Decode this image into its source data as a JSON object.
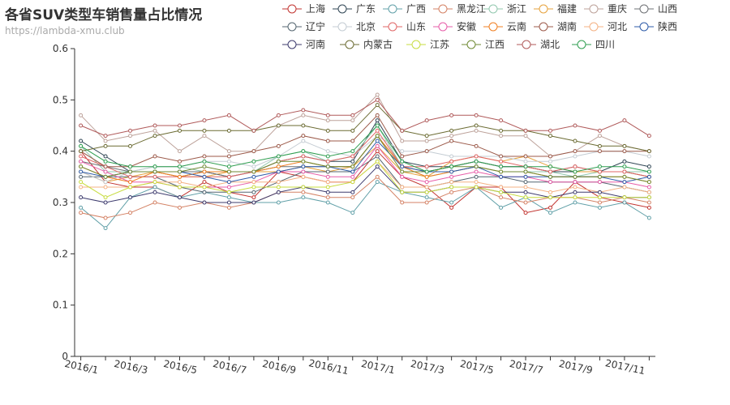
{
  "chart_data": {
    "type": "line",
    "title": "各省SUV类型车销售量占比情况",
    "subtitle": "https://lambda-xmu.club",
    "xlabel": "",
    "ylabel": "",
    "ylim": [
      0,
      0.6
    ],
    "yticks": [
      0,
      0.1,
      0.2,
      0.3,
      0.4,
      0.5,
      0.6
    ],
    "x": [
      "2016/1",
      "2016/2",
      "2016/3",
      "2016/4",
      "2016/5",
      "2016/6",
      "2016/7",
      "2016/8",
      "2016/9",
      "2016/10",
      "2016/11",
      "2016/12",
      "2017/1",
      "2017/2",
      "2017/3",
      "2017/4",
      "2017/5",
      "2017/6",
      "2017/7",
      "2017/8",
      "2017/9",
      "2017/10",
      "2017/11",
      "2017/12"
    ],
    "x_tick_labels": [
      "2016/1",
      "2016/3",
      "2016/5",
      "2016/7",
      "2016/9",
      "2016/11",
      "2017/1",
      "2017/3",
      "2017/5",
      "2017/7",
      "2017/9",
      "2017/11"
    ],
    "grid": false,
    "legend_position": "top-right",
    "series": [
      {
        "name": "上海",
        "color": "#c23531",
        "values": [
          0.4,
          0.34,
          0.33,
          0.33,
          0.31,
          0.34,
          0.32,
          0.31,
          0.36,
          0.35,
          0.34,
          0.34,
          0.4,
          0.35,
          0.33,
          0.29,
          0.33,
          0.33,
          0.28,
          0.29,
          0.34,
          0.31,
          0.3,
          0.29
        ]
      },
      {
        "name": "广东",
        "color": "#2f4554",
        "values": [
          0.42,
          0.39,
          0.36,
          0.36,
          0.35,
          0.36,
          0.35,
          0.36,
          0.38,
          0.39,
          0.38,
          0.38,
          0.46,
          0.38,
          0.37,
          0.37,
          0.38,
          0.37,
          0.37,
          0.36,
          0.36,
          0.36,
          0.38,
          0.37
        ]
      },
      {
        "name": "广西",
        "color": "#61a0a8",
        "values": [
          0.29,
          0.25,
          0.31,
          0.33,
          0.31,
          0.32,
          0.31,
          0.3,
          0.3,
          0.31,
          0.3,
          0.28,
          0.34,
          0.32,
          0.31,
          0.3,
          0.33,
          0.29,
          0.31,
          0.28,
          0.3,
          0.29,
          0.3,
          0.27
        ]
      },
      {
        "name": "黑龙江",
        "color": "#d48265",
        "values": [
          0.28,
          0.27,
          0.28,
          0.3,
          0.29,
          0.3,
          0.29,
          0.3,
          0.32,
          0.32,
          0.31,
          0.31,
          0.35,
          0.3,
          0.3,
          0.32,
          0.33,
          0.31,
          0.3,
          0.31,
          0.31,
          0.3,
          0.31,
          0.3
        ]
      },
      {
        "name": "浙江",
        "color": "#91c7ae",
        "values": [
          0.41,
          0.36,
          0.36,
          0.37,
          0.37,
          0.36,
          0.36,
          0.36,
          0.39,
          0.4,
          0.38,
          0.39,
          0.45,
          0.37,
          0.35,
          0.36,
          0.37,
          0.36,
          0.36,
          0.36,
          0.35,
          0.36,
          0.36,
          0.36
        ]
      },
      {
        "name": "福建",
        "color": "#e6a23c",
        "values": [
          0.36,
          0.34,
          0.35,
          0.36,
          0.35,
          0.35,
          0.36,
          0.36,
          0.36,
          0.37,
          0.36,
          0.37,
          0.41,
          0.36,
          0.35,
          0.38,
          0.39,
          0.38,
          0.39,
          0.37,
          0.36,
          0.36,
          0.36,
          0.35
        ]
      },
      {
        "name": "重庆",
        "color": "#bda29a",
        "values": [
          0.47,
          0.42,
          0.43,
          0.44,
          0.4,
          0.43,
          0.4,
          0.4,
          0.45,
          0.47,
          0.46,
          0.46,
          0.51,
          0.42,
          0.42,
          0.43,
          0.44,
          0.43,
          0.43,
          0.39,
          0.4,
          0.43,
          0.41,
          0.4
        ]
      },
      {
        "name": "山西",
        "color": "#6e7074",
        "values": [
          0.38,
          0.37,
          0.36,
          0.36,
          0.36,
          0.36,
          0.35,
          0.36,
          0.37,
          0.37,
          0.37,
          0.37,
          0.43,
          0.37,
          0.36,
          0.37,
          0.38,
          0.37,
          0.37,
          0.36,
          0.37,
          0.36,
          0.36,
          0.35
        ]
      },
      {
        "name": "辽宁",
        "color": "#546570",
        "values": [
          0.35,
          0.35,
          0.35,
          0.35,
          0.33,
          0.32,
          0.32,
          0.32,
          0.34,
          0.36,
          0.36,
          0.36,
          0.39,
          0.33,
          0.33,
          0.34,
          0.35,
          0.35,
          0.34,
          0.34,
          0.34,
          0.34,
          0.33,
          0.32
        ]
      },
      {
        "name": "北京",
        "color": "#c4ccd3",
        "values": [
          0.36,
          0.34,
          0.36,
          0.37,
          0.37,
          0.38,
          0.38,
          0.37,
          0.39,
          0.42,
          0.4,
          0.39,
          0.43,
          0.4,
          0.4,
          0.39,
          0.39,
          0.39,
          0.38,
          0.38,
          0.39,
          0.4,
          0.4,
          0.39
        ]
      },
      {
        "name": "山东",
        "color": "#e06666",
        "values": [
          0.39,
          0.37,
          0.35,
          0.35,
          0.35,
          0.35,
          0.35,
          0.36,
          0.38,
          0.39,
          0.38,
          0.39,
          0.44,
          0.37,
          0.37,
          0.38,
          0.39,
          0.38,
          0.37,
          0.36,
          0.37,
          0.36,
          0.36,
          0.35
        ]
      },
      {
        "name": "安徽",
        "color": "#e75da8",
        "values": [
          0.38,
          0.36,
          0.34,
          0.34,
          0.33,
          0.33,
          0.33,
          0.34,
          0.36,
          0.36,
          0.35,
          0.35,
          0.41,
          0.35,
          0.34,
          0.35,
          0.36,
          0.35,
          0.35,
          0.34,
          0.34,
          0.34,
          0.34,
          0.33
        ]
      },
      {
        "name": "云南",
        "color": "#f07f22",
        "values": [
          0.37,
          0.35,
          0.34,
          0.36,
          0.35,
          0.36,
          0.36,
          0.36,
          0.37,
          0.38,
          0.37,
          0.37,
          0.43,
          0.37,
          0.35,
          0.36,
          0.37,
          0.36,
          0.36,
          0.35,
          0.35,
          0.35,
          0.35,
          0.34
        ]
      },
      {
        "name": "湖南",
        "color": "#9c5a4a",
        "values": [
          0.4,
          0.37,
          0.37,
          0.39,
          0.38,
          0.39,
          0.39,
          0.4,
          0.41,
          0.43,
          0.42,
          0.42,
          0.47,
          0.39,
          0.4,
          0.42,
          0.41,
          0.39,
          0.39,
          0.39,
          0.4,
          0.4,
          0.4,
          0.4
        ]
      },
      {
        "name": "河北",
        "color": "#f4b183",
        "values": [
          0.33,
          0.33,
          0.33,
          0.34,
          0.34,
          0.33,
          0.34,
          0.34,
          0.34,
          0.35,
          0.34,
          0.34,
          0.38,
          0.33,
          0.33,
          0.34,
          0.34,
          0.33,
          0.33,
          0.32,
          0.33,
          0.32,
          0.33,
          0.32
        ]
      },
      {
        "name": "陕西",
        "color": "#2e5ba8",
        "values": [
          0.36,
          0.35,
          0.36,
          0.36,
          0.36,
          0.35,
          0.34,
          0.35,
          0.36,
          0.37,
          0.37,
          0.36,
          0.42,
          0.37,
          0.36,
          0.36,
          0.37,
          0.35,
          0.35,
          0.35,
          0.35,
          0.35,
          0.34,
          0.35
        ]
      },
      {
        "name": "河南",
        "color": "#3d3b6e",
        "values": [
          0.31,
          0.3,
          0.31,
          0.32,
          0.31,
          0.3,
          0.3,
          0.3,
          0.32,
          0.33,
          0.32,
          0.32,
          0.37,
          0.32,
          0.32,
          0.33,
          0.33,
          0.32,
          0.32,
          0.31,
          0.32,
          0.32,
          0.31,
          0.31
        ]
      },
      {
        "name": "内蒙古",
        "color": "#6b6b32",
        "values": [
          0.4,
          0.41,
          0.41,
          0.43,
          0.44,
          0.44,
          0.44,
          0.44,
          0.45,
          0.45,
          0.44,
          0.44,
          0.49,
          0.44,
          0.43,
          0.44,
          0.45,
          0.44,
          0.44,
          0.43,
          0.42,
          0.41,
          0.41,
          0.4
        ]
      },
      {
        "name": "江苏",
        "color": "#c7dc3f",
        "values": [
          0.34,
          0.31,
          0.33,
          0.34,
          0.33,
          0.33,
          0.32,
          0.33,
          0.33,
          0.33,
          0.33,
          0.34,
          0.38,
          0.32,
          0.32,
          0.33,
          0.33,
          0.32,
          0.31,
          0.31,
          0.31,
          0.31,
          0.31,
          0.31
        ]
      },
      {
        "name": "江西",
        "color": "#6f8a33",
        "values": [
          0.37,
          0.35,
          0.36,
          0.36,
          0.36,
          0.37,
          0.36,
          0.36,
          0.38,
          0.38,
          0.37,
          0.37,
          0.43,
          0.36,
          0.36,
          0.37,
          0.37,
          0.36,
          0.36,
          0.35,
          0.35,
          0.35,
          0.35,
          0.34
        ]
      },
      {
        "name": "湖北",
        "color": "#b05a5a",
        "values": [
          0.45,
          0.43,
          0.44,
          0.45,
          0.45,
          0.46,
          0.47,
          0.44,
          0.47,
          0.48,
          0.47,
          0.47,
          0.5,
          0.44,
          0.46,
          0.47,
          0.47,
          0.46,
          0.44,
          0.44,
          0.45,
          0.44,
          0.46,
          0.43
        ]
      },
      {
        "name": "四川",
        "color": "#2f9e50",
        "values": [
          0.41,
          0.38,
          0.37,
          0.37,
          0.37,
          0.38,
          0.37,
          0.38,
          0.39,
          0.4,
          0.39,
          0.4,
          0.45,
          0.38,
          0.36,
          0.37,
          0.38,
          0.37,
          0.37,
          0.37,
          0.36,
          0.37,
          0.37,
          0.36
        ]
      }
    ]
  }
}
